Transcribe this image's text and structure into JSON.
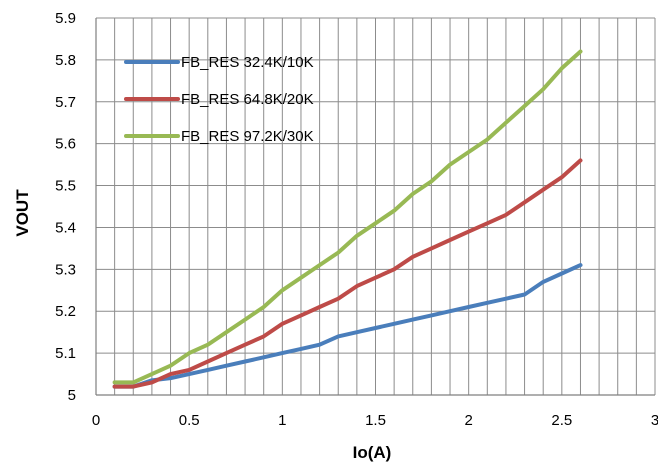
{
  "chart_data": {
    "type": "line",
    "title": "",
    "xlabel": "Io(A)",
    "ylabel": "VOUT",
    "xlim": [
      0,
      3
    ],
    "ylim": [
      5,
      5.9
    ],
    "x_ticks": [
      0,
      0.5,
      1,
      1.5,
      2,
      2.5,
      3
    ],
    "x_tick_labels": [
      "0",
      "0.5",
      "1",
      "1.5",
      "2",
      "2.5",
      "3"
    ],
    "y_ticks": [
      5,
      5.1,
      5.2,
      5.3,
      5.4,
      5.5,
      5.6,
      5.7,
      5.8,
      5.9
    ],
    "y_tick_labels": [
      "5",
      "5.1",
      "5.2",
      "5.3",
      "5.4",
      "5.5",
      "5.6",
      "5.7",
      "5.8",
      "5.9"
    ],
    "x_minor_step": 0.1,
    "grid": true,
    "legend_position": "top-left",
    "series": [
      {
        "name": "FB_RES 32.4K/10K",
        "color": "#4a7ebb",
        "x": [
          0.1,
          0.2,
          0.3,
          0.4,
          0.5,
          0.6,
          0.7,
          0.8,
          0.9,
          1.0,
          1.1,
          1.2,
          1.3,
          1.4,
          1.5,
          1.6,
          1.7,
          1.8,
          1.9,
          2.0,
          2.1,
          2.2,
          2.3,
          2.4,
          2.5,
          2.6
        ],
        "y": [
          5.02,
          5.02,
          5.035,
          5.04,
          5.05,
          5.06,
          5.07,
          5.08,
          5.09,
          5.1,
          5.11,
          5.12,
          5.14,
          5.15,
          5.16,
          5.17,
          5.18,
          5.19,
          5.2,
          5.21,
          5.22,
          5.23,
          5.24,
          5.27,
          5.29,
          5.31
        ]
      },
      {
        "name": "FB_RES 64.8K/20K",
        "color": "#be4b48",
        "x": [
          0.1,
          0.2,
          0.3,
          0.4,
          0.5,
          0.6,
          0.7,
          0.8,
          0.9,
          1.0,
          1.1,
          1.2,
          1.3,
          1.4,
          1.5,
          1.6,
          1.7,
          1.8,
          1.9,
          2.0,
          2.1,
          2.2,
          2.3,
          2.4,
          2.5,
          2.6
        ],
        "y": [
          5.02,
          5.02,
          5.03,
          5.05,
          5.06,
          5.08,
          5.1,
          5.12,
          5.14,
          5.17,
          5.19,
          5.21,
          5.23,
          5.26,
          5.28,
          5.3,
          5.33,
          5.35,
          5.37,
          5.39,
          5.41,
          5.43,
          5.46,
          5.49,
          5.52,
          5.56
        ]
      },
      {
        "name": "FB_RES 97.2K/30K",
        "color": "#98b954",
        "x": [
          0.1,
          0.2,
          0.3,
          0.4,
          0.5,
          0.6,
          0.7,
          0.8,
          0.9,
          1.0,
          1.1,
          1.2,
          1.3,
          1.4,
          1.5,
          1.6,
          1.7,
          1.8,
          1.9,
          2.0,
          2.1,
          2.2,
          2.3,
          2.4,
          2.5,
          2.6
        ],
        "y": [
          5.03,
          5.03,
          5.05,
          5.07,
          5.1,
          5.12,
          5.15,
          5.18,
          5.21,
          5.25,
          5.28,
          5.31,
          5.34,
          5.38,
          5.41,
          5.44,
          5.48,
          5.51,
          5.55,
          5.58,
          5.61,
          5.65,
          5.69,
          5.73,
          5.78,
          5.82
        ]
      }
    ]
  }
}
